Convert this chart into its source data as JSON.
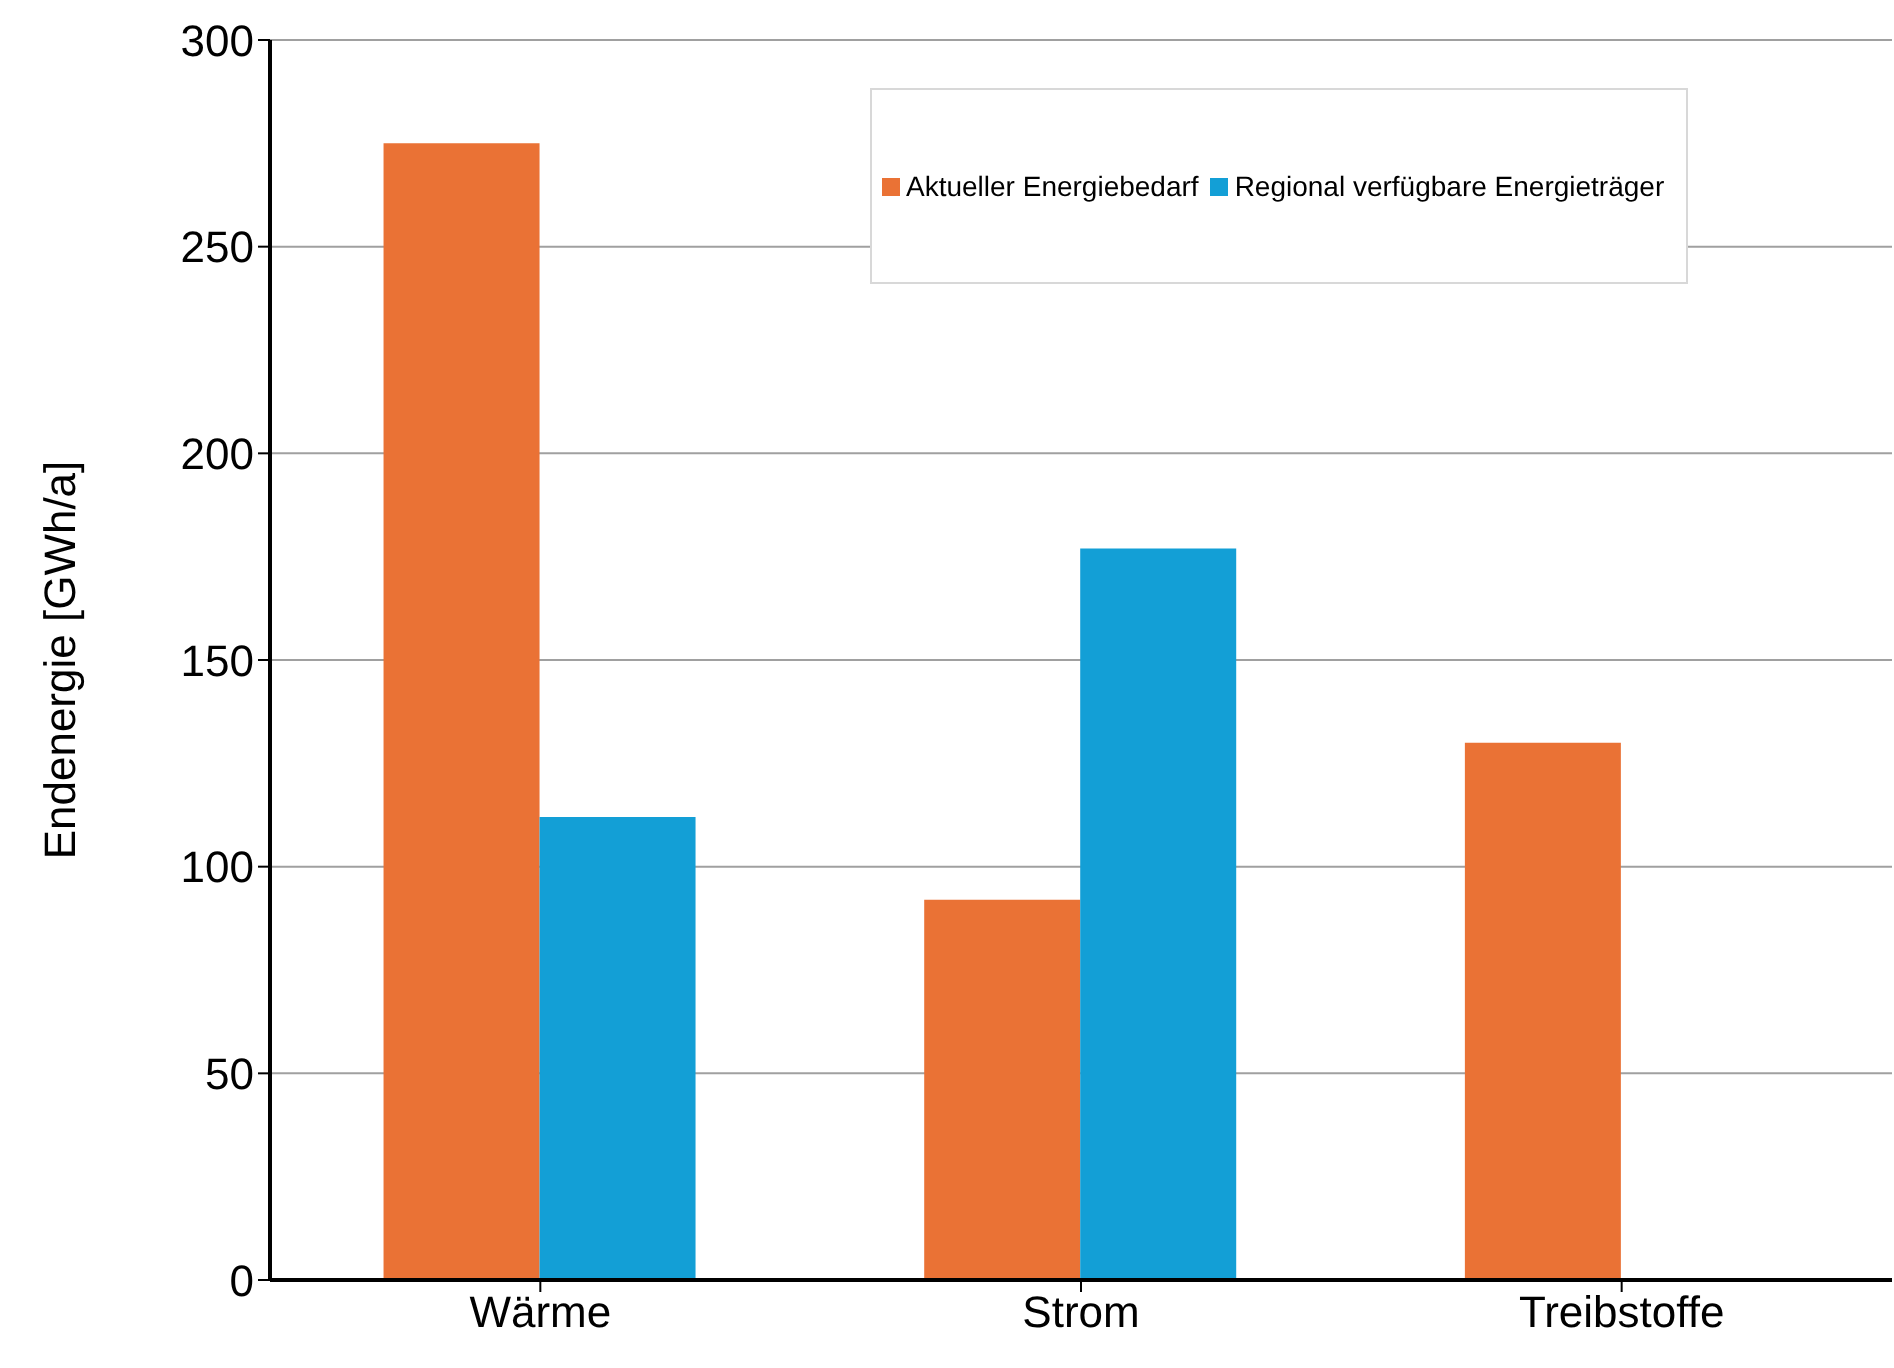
{
  "chart_data": {
    "type": "bar",
    "ylabel": "Endenergie [GWh/a]",
    "categories": [
      "Wärme",
      "Strom",
      "Treibstoffe"
    ],
    "series": [
      {
        "name": "Aktueller Energiebedarf",
        "color": "#ea7235",
        "values": [
          275,
          92,
          130
        ]
      },
      {
        "name": "Regional verfügbare Energieträger",
        "color": "#139fd6",
        "values": [
          112,
          177,
          0
        ]
      }
    ],
    "ylim": [
      0,
      300
    ],
    "yticks": [
      0,
      50,
      100,
      150,
      200,
      250,
      300
    ],
    "grid": "y",
    "legend": "top right"
  }
}
